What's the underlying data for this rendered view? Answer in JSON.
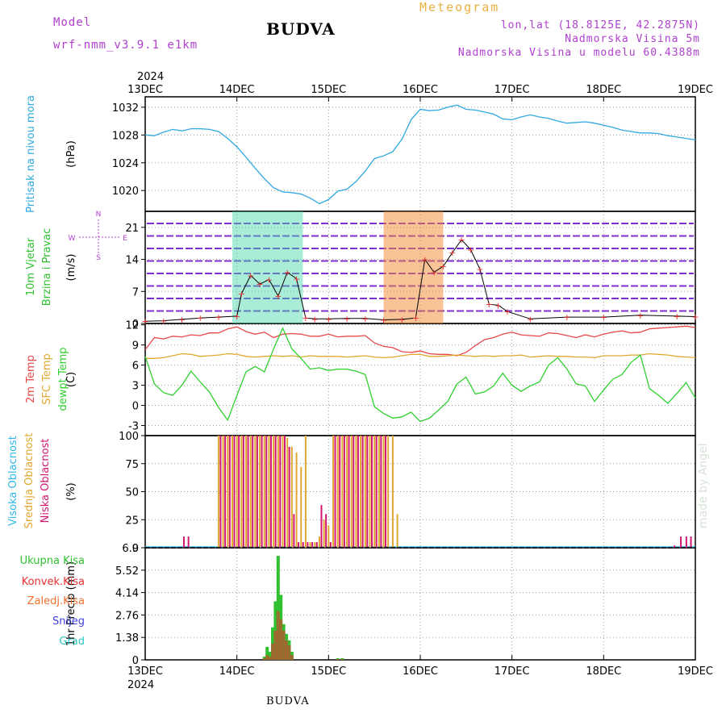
{
  "header": {
    "model_label": "Model",
    "model_name": "wrf-nmm_v3.9.1 e1km",
    "title": "BUDVA",
    "meteogram": "Meteogram",
    "lonlat": "lon,lat (18.8125E, 42.2875N)",
    "elevation": "Nadmorska Visina 5m",
    "model_elevation": "Nadmorska Visina u modelu 60.4388m",
    "bottom_title": "BUDVA",
    "watermark": "made by Angel"
  },
  "time_axis": {
    "year": "2024",
    "labels": [
      "13DEC",
      "14DEC",
      "15DEC",
      "16DEC",
      "17DEC",
      "18DEC",
      "19DEC"
    ]
  },
  "colors": {
    "pressure": "#30a8e0",
    "temp2m": "#e84848",
    "sfc": "#e0a830",
    "dewpt": "#30d030",
    "high_cloud": "#30b8e8",
    "mid_cloud": "#e0a830",
    "low_cloud": "#d01870",
    "total_precip": "#30c030",
    "convective": "#e83030",
    "frozen": "#f07030",
    "snow": "#4040e0",
    "hail": "#30c8c8"
  },
  "chart_data": [
    {
      "type": "line",
      "panel": "pressure",
      "ylabel_main": "Pritisak na nivou mora",
      "unit": "(hPa)",
      "yticks": [
        "1020",
        "1024",
        "1028",
        "1032"
      ],
      "ylim": [
        1017,
        1033.5
      ],
      "x_days": [
        0,
        0.1,
        0.2,
        0.3,
        0.4,
        0.5,
        0.6,
        0.7,
        0.8,
        0.9,
        1.0,
        1.1,
        1.2,
        1.3,
        1.4,
        1.5,
        1.6,
        1.7,
        1.8,
        1.9,
        2.0,
        2.1,
        2.2,
        2.3,
        2.4,
        2.5,
        2.6,
        2.7,
        2.8,
        2.9,
        3.0,
        3.1,
        3.2,
        3.3,
        3.4,
        3.5,
        3.6,
        3.7,
        3.8,
        3.9,
        4.0,
        4.1,
        4.2,
        4.3,
        4.4,
        4.5,
        4.6,
        4.7,
        4.8,
        4.9,
        5.0,
        5.1,
        5.2,
        5.3,
        5.4,
        5.5,
        5.6,
        5.7,
        5.8,
        5.9,
        6.0
      ],
      "values": [
        1028.0,
        1027.9,
        1028.4,
        1028.8,
        1028.6,
        1028.9,
        1028.9,
        1028.8,
        1028.5,
        1027.5,
        1026.3,
        1024.8,
        1023.2,
        1021.7,
        1020.4,
        1019.8,
        1019.7,
        1019.5,
        1018.9,
        1018.1,
        1018.7,
        1019.9,
        1020.2,
        1021.3,
        1022.8,
        1024.6,
        1025.0,
        1025.6,
        1027.4,
        1030.2,
        1031.7,
        1031.5,
        1031.6,
        1032.0,
        1032.3,
        1031.7,
        1031.6,
        1031.3,
        1031.0,
        1030.3,
        1030.2,
        1030.6,
        1030.9,
        1030.6,
        1030.4,
        1030.0,
        1029.7,
        1029.8,
        1029.9,
        1029.7,
        1029.4,
        1029.1,
        1028.7,
        1028.5,
        1028.3,
        1028.3,
        1028.2,
        1027.9,
        1027.7,
        1027.5,
        1027.3
      ]
    },
    {
      "type": "scatter",
      "panel": "wind",
      "ylabel_main": "10m Vjetar",
      "ylabel_sub": "Brzina i Pravac",
      "unit": "(m/s)",
      "compass": {
        "n": "N",
        "s": "S",
        "e": "E",
        "w": "W"
      },
      "yticks": [
        "0",
        "7",
        "14",
        "21"
      ],
      "ylim": [
        0,
        24.5
      ],
      "x_days": [
        0,
        0.2,
        0.4,
        0.6,
        0.8,
        1.0,
        1.05,
        1.15,
        1.25,
        1.35,
        1.45,
        1.55,
        1.65,
        1.75,
        1.85,
        2.0,
        2.2,
        2.4,
        2.6,
        2.8,
        2.95,
        3.05,
        3.15,
        3.25,
        3.35,
        3.45,
        3.55,
        3.65,
        3.75,
        3.85,
        3.95,
        4.2,
        4.6,
        5.0,
        5.4,
        5.8,
        6.0
      ],
      "speed": [
        0.5,
        0.6,
        0.9,
        1.2,
        1.4,
        1.6,
        6.5,
        10.5,
        8.6,
        9.6,
        6.0,
        11.2,
        9.8,
        1.2,
        1.0,
        1.0,
        1.1,
        1.1,
        0.8,
        0.9,
        1.2,
        14.0,
        11.2,
        12.5,
        15.5,
        18.3,
        16.1,
        11.9,
        4.2,
        4.0,
        2.6,
        1.0,
        1.4,
        1.4,
        1.8,
        1.6,
        1.5
      ]
    },
    {
      "type": "line",
      "panel": "temperature",
      "ylabel_a": "2m Temp",
      "ylabel_b": "SFC Temp",
      "ylabel_c": "dewpt Temp",
      "unit": "(C)",
      "yticks": [
        "-3",
        "0",
        "3",
        "6",
        "9",
        "12"
      ],
      "ylim": [
        -4.5,
        12.2
      ],
      "x_days": [
        0,
        0.1,
        0.2,
        0.3,
        0.4,
        0.5,
        0.6,
        0.7,
        0.8,
        0.9,
        1.0,
        1.1,
        1.2,
        1.3,
        1.4,
        1.5,
        1.6,
        1.7,
        1.8,
        1.9,
        2.0,
        2.1,
        2.2,
        2.3,
        2.4,
        2.5,
        2.6,
        2.7,
        2.8,
        2.9,
        3.0,
        3.1,
        3.2,
        3.3,
        3.4,
        3.5,
        3.6,
        3.7,
        3.8,
        3.9,
        4.0,
        4.1,
        4.2,
        4.3,
        4.4,
        4.5,
        4.6,
        4.7,
        4.8,
        4.9,
        5.0,
        5.1,
        5.2,
        5.3,
        5.4,
        5.5,
        5.6,
        5.7,
        5.8,
        5.9,
        6.0
      ],
      "series": [
        {
          "name": "2m Temp",
          "values": [
            8.3,
            10.1,
            9.9,
            10.3,
            10.2,
            10.5,
            10.4,
            10.8,
            10.8,
            11.4,
            11.7,
            11.0,
            10.6,
            10.9,
            10.1,
            10.6,
            10.7,
            10.6,
            10.3,
            10.3,
            10.6,
            10.2,
            10.3,
            10.3,
            10.4,
            9.3,
            8.8,
            8.6,
            8.0,
            7.9,
            8.1,
            7.7,
            7.6,
            7.6,
            7.4,
            7.9,
            8.9,
            9.8,
            10.1,
            10.6,
            10.9,
            10.5,
            10.4,
            10.3,
            10.8,
            10.7,
            10.4,
            10.1,
            10.5,
            10.2,
            10.6,
            10.9,
            11.1,
            10.8,
            10.9,
            11.4,
            11.5,
            11.6,
            11.7,
            11.8,
            11.6
          ]
        },
        {
          "name": "SFC Temp",
          "values": [
            7.0,
            7.0,
            7.1,
            7.4,
            7.7,
            7.6,
            7.3,
            7.4,
            7.5,
            7.7,
            7.6,
            7.3,
            7.2,
            7.3,
            7.4,
            7.3,
            7.4,
            7.2,
            7.4,
            7.3,
            7.3,
            7.3,
            7.2,
            7.3,
            7.4,
            7.2,
            7.1,
            7.2,
            7.4,
            7.6,
            7.6,
            7.3,
            7.3,
            7.4,
            7.5,
            7.4,
            7.3,
            7.4,
            7.3,
            7.4,
            7.4,
            7.5,
            7.2,
            7.3,
            7.4,
            7.3,
            7.3,
            7.2,
            7.2,
            7.1,
            7.4,
            7.4,
            7.4,
            7.5,
            7.5,
            7.7,
            7.6,
            7.5,
            7.3,
            7.2,
            7.1
          ]
        },
        {
          "name": "dewpt Temp",
          "values": [
            7.3,
            3.2,
            1.9,
            1.5,
            3.0,
            5.1,
            3.5,
            2.0,
            -0.3,
            -2.2,
            1.5,
            5.0,
            5.8,
            5.0,
            8.4,
            11.5,
            8.4,
            7.0,
            5.4,
            5.6,
            5.2,
            5.4,
            5.4,
            5.1,
            4.6,
            -0.2,
            -1.2,
            -1.9,
            -1.7,
            -1.0,
            -2.4,
            -1.9,
            -0.7,
            0.6,
            3.2,
            4.2,
            1.7,
            2.0,
            2.9,
            4.8,
            3.0,
            2.1,
            2.9,
            3.5,
            6.0,
            7.1,
            5.4,
            3.2,
            2.9,
            0.6,
            2.3,
            3.9,
            4.6,
            6.4,
            7.5,
            2.5,
            1.5,
            0.3,
            1.8,
            3.4,
            1.1
          ]
        }
      ]
    },
    {
      "type": "bar",
      "panel": "clouds",
      "ylabel_a": "Visoka Oblacnost",
      "ylabel_b": "Srednja Oblacnost",
      "ylabel_c": "Niska Oblacnost",
      "unit": "(%)",
      "yticks": [
        "0",
        "25",
        "50",
        "75",
        "100"
      ],
      "ylim": [
        0,
        100
      ],
      "x_days": [
        0.4,
        0.45,
        0.8,
        0.85,
        0.9,
        0.95,
        1.0,
        1.05,
        1.1,
        1.15,
        1.2,
        1.25,
        1.3,
        1.35,
        1.4,
        1.45,
        1.5,
        1.55,
        1.6,
        1.65,
        1.7,
        1.75,
        1.8,
        1.85,
        1.9,
        1.95,
        2.0,
        2.05,
        2.1,
        2.15,
        2.2,
        2.25,
        2.3,
        2.35,
        2.4,
        2.45,
        2.5,
        2.55,
        2.6,
        2.65,
        2.7,
        2.75,
        5.75,
        5.82,
        5.88,
        5.93
      ],
      "series": [
        {
          "name": "Srednja Oblacnost",
          "values": [
            0,
            0,
            100,
            100,
            100,
            100,
            100,
            100,
            100,
            100,
            100,
            100,
            100,
            100,
            100,
            100,
            100,
            98,
            90,
            85,
            72,
            100,
            5,
            5,
            10,
            25,
            20,
            100,
            100,
            100,
            100,
            100,
            100,
            100,
            100,
            100,
            100,
            100,
            100,
            100,
            100,
            30,
            0,
            0,
            0,
            0
          ]
        },
        {
          "name": "Niska Oblacnost",
          "values": [
            10,
            10,
            100,
            100,
            100,
            100,
            100,
            100,
            100,
            100,
            100,
            100,
            100,
            100,
            100,
            100,
            100,
            90,
            30,
            5,
            5,
            5,
            5,
            5,
            38,
            30,
            5,
            100,
            100,
            100,
            100,
            100,
            100,
            100,
            100,
            100,
            100,
            100,
            100,
            0,
            0,
            0,
            2,
            10,
            10,
            10
          ]
        }
      ]
    },
    {
      "type": "bar",
      "panel": "precipitation",
      "ylabel_a": "Ukupna Kisa",
      "ylabel_b": "Konvek.Kisa",
      "ylabel_c": "Zaledj.Kisa",
      "ylabel_d": "Snijeg",
      "ylabel_e": "Grad",
      "unit": "1hr Precip (mm)",
      "yticks": [
        "0",
        "1.38",
        "2.76",
        "4.14",
        "5.52",
        "6.9"
      ],
      "ylim": [
        0,
        6.9
      ],
      "x_days": [
        1.3,
        1.33,
        1.36,
        1.39,
        1.42,
        1.45,
        1.48,
        1.51,
        1.54,
        1.57,
        1.6,
        2.1,
        2.15
      ],
      "series": [
        {
          "name": "Ukupna Kisa",
          "values": [
            0.2,
            0.8,
            0.5,
            2.0,
            3.6,
            6.4,
            4.0,
            2.2,
            1.6,
            1.2,
            0.5,
            0.1,
            0.1
          ]
        },
        {
          "name": "Konvek.Kisa",
          "values": [
            0.1,
            0.3,
            0.2,
            1.0,
            1.8,
            3.0,
            2.5,
            1.8,
            1.2,
            0.9,
            0.3,
            0.05,
            0.05
          ]
        }
      ]
    }
  ]
}
